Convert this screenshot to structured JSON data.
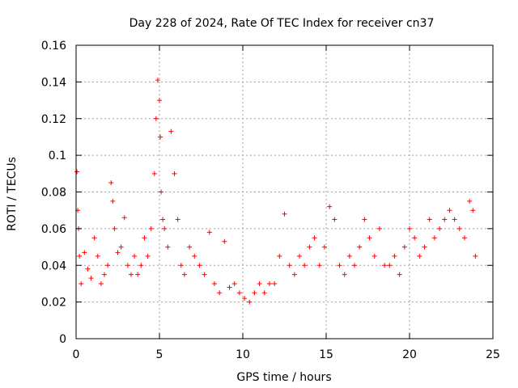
{
  "chart_data": {
    "type": "scatter",
    "title": "Day 228 of 2024, Rate Of TEC Index for receiver cn37",
    "xlabel": "GPS time / hours",
    "ylabel": "ROTI / TECUs",
    "xlim": [
      0,
      25
    ],
    "ylim": [
      0,
      0.16
    ],
    "xticks": [
      "0",
      "5",
      "10",
      "15",
      "20",
      "25"
    ],
    "yticks": [
      "0",
      "0.02",
      "0.04",
      "0.06",
      "0.08",
      "0.1",
      "0.12",
      "0.14",
      "0.16"
    ],
    "grid": true,
    "marker": "+",
    "color": "#ff0000",
    "series": [
      {
        "x": [
          0.05,
          0.1,
          0.15,
          0.2,
          0.3,
          0.5,
          0.7,
          0.9,
          1.1,
          1.3,
          1.5,
          1.7,
          1.9,
          2.1,
          2.2,
          2.3,
          2.5,
          2.7,
          2.9,
          3.1,
          3.3,
          3.5,
          3.7,
          3.9,
          4.1,
          4.3,
          4.5,
          4.7,
          4.8,
          4.9,
          5.0,
          5.05,
          5.1,
          5.2,
          5.3,
          5.5,
          5.7,
          5.9,
          6.1,
          6.3,
          6.5,
          6.8,
          7.1,
          7.4,
          7.7,
          8.0,
          8.3,
          8.6,
          8.9,
          9.2,
          9.5,
          9.8,
          10.1,
          10.4,
          10.7,
          11.0,
          11.3,
          11.6,
          11.9,
          12.2,
          12.5,
          12.8,
          13.1,
          13.4,
          13.7,
          14.0,
          14.3,
          14.6,
          14.9,
          15.2,
          15.5,
          15.8,
          16.1,
          16.4,
          16.7,
          17.0,
          17.3,
          17.6,
          17.9,
          18.2,
          18.5,
          18.8,
          19.1,
          19.4,
          19.7,
          20.0,
          20.3,
          20.6,
          20.9,
          21.2,
          21.5,
          21.8,
          22.1,
          22.4,
          22.7,
          23.0,
          23.3,
          23.6,
          23.8,
          23.95
        ],
        "y": [
          0.091,
          0.07,
          0.06,
          0.045,
          0.03,
          0.047,
          0.038,
          0.033,
          0.055,
          0.045,
          0.03,
          0.035,
          0.04,
          0.085,
          0.075,
          0.06,
          0.047,
          0.05,
          0.066,
          0.04,
          0.035,
          0.045,
          0.035,
          0.04,
          0.055,
          0.045,
          0.06,
          0.09,
          0.12,
          0.141,
          0.13,
          0.11,
          0.08,
          0.065,
          0.06,
          0.05,
          0.113,
          0.09,
          0.065,
          0.04,
          0.035,
          0.05,
          0.045,
          0.04,
          0.035,
          0.058,
          0.03,
          0.025,
          0.053,
          0.028,
          0.03,
          0.025,
          0.022,
          0.02,
          0.025,
          0.03,
          0.025,
          0.03,
          0.03,
          0.045,
          0.068,
          0.04,
          0.035,
          0.045,
          0.04,
          0.05,
          0.055,
          0.04,
          0.05,
          0.072,
          0.065,
          0.04,
          0.035,
          0.045,
          0.04,
          0.05,
          0.065,
          0.055,
          0.045,
          0.06,
          0.04,
          0.04,
          0.045,
          0.035,
          0.05,
          0.06,
          0.055,
          0.045,
          0.05,
          0.065,
          0.055,
          0.06,
          0.065,
          0.07,
          0.065,
          0.06,
          0.055,
          0.075,
          0.07,
          0.045
        ]
      }
    ]
  }
}
